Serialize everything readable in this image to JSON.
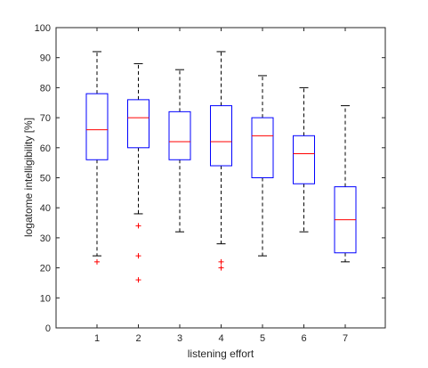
{
  "chart_data": {
    "type": "box",
    "xlabel": "listening effort",
    "ylabel": "logatome intelligibility [%]",
    "ylim": [
      0,
      100
    ],
    "yticks": [
      0,
      10,
      20,
      30,
      40,
      50,
      60,
      70,
      80,
      90,
      100
    ],
    "categories": [
      "1",
      "2",
      "3",
      "4",
      "5",
      "6",
      "7"
    ],
    "grid": false,
    "colors": {
      "box": "#0000ff",
      "median": "#ff0000",
      "whisker": "#000000",
      "outlier": "#ff0000",
      "axis": "#262626"
    },
    "boxes": [
      {
        "category": "1",
        "whisker_low": 24,
        "q1": 56,
        "median": 66,
        "q3": 78,
        "whisker_high": 92,
        "outliers": [
          22
        ]
      },
      {
        "category": "2",
        "whisker_low": 38,
        "q1": 60,
        "median": 70,
        "q3": 76,
        "whisker_high": 88,
        "outliers": [
          34,
          24,
          16
        ]
      },
      {
        "category": "3",
        "whisker_low": 32,
        "q1": 56,
        "median": 62,
        "q3": 72,
        "whisker_high": 86,
        "outliers": []
      },
      {
        "category": "4",
        "whisker_low": 28,
        "q1": 54,
        "median": 62,
        "q3": 74,
        "whisker_high": 92,
        "outliers": [
          22,
          20
        ]
      },
      {
        "category": "5",
        "whisker_low": 24,
        "q1": 50,
        "median": 64,
        "q3": 70,
        "whisker_high": 84,
        "outliers": []
      },
      {
        "category": "6",
        "whisker_low": 32,
        "q1": 48,
        "median": 58,
        "q3": 64,
        "whisker_high": 80,
        "outliers": []
      },
      {
        "category": "7",
        "whisker_low": 22,
        "q1": 25,
        "median": 36,
        "q3": 47,
        "whisker_high": 74,
        "outliers": []
      }
    ]
  }
}
